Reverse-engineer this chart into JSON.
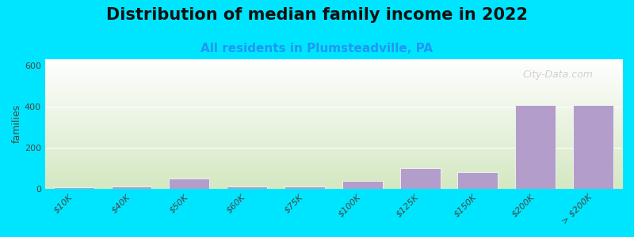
{
  "title": "Distribution of median family income in 2022",
  "subtitle": "All residents in Plumsteadville, PA",
  "ylabel": "families",
  "categories": [
    "$10K",
    "$40K",
    "$50K",
    "$60K",
    "$75K",
    "$100K",
    "$125K",
    "$150K",
    "$200K",
    "> $200K"
  ],
  "values": [
    5,
    12,
    50,
    12,
    10,
    38,
    100,
    78,
    405,
    405
  ],
  "bar_color": "#b39dca",
  "background_outer": "#00e5ff",
  "background_inner_top": "#ffffff",
  "background_inner_bottom": "#d4e8c2",
  "ylim": [
    0,
    630
  ],
  "yticks": [
    0,
    200,
    400,
    600
  ],
  "watermark": "City-Data.com",
  "title_fontsize": 15,
  "subtitle_fontsize": 11,
  "ylabel_fontsize": 9,
  "tick_fontsize": 8
}
